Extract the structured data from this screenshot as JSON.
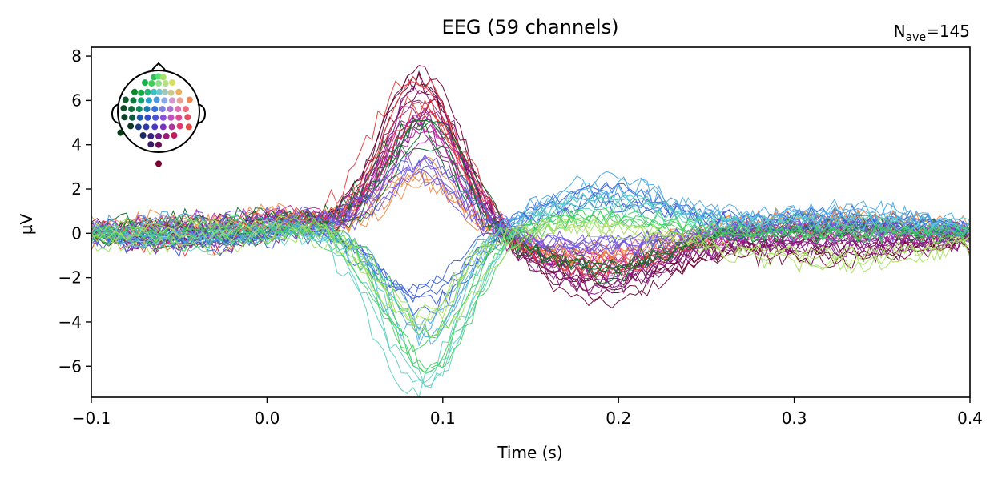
{
  "chart_data": {
    "type": "line",
    "title": "EEG (59 channels)",
    "annotation": {
      "prefix": "N",
      "subscript": "ave",
      "suffix": "=145"
    },
    "xlabel": "Time (s)",
    "ylabel": "µV",
    "xlim": [
      -0.1,
      0.4
    ],
    "ylim": [
      -7.4,
      8.4
    ],
    "xticks": [
      -0.1,
      0.0,
      0.1,
      0.2,
      0.3,
      0.4
    ],
    "xtick_labels": [
      "−0.1",
      "0.0",
      "0.1",
      "0.2",
      "0.3",
      "0.4"
    ],
    "yticks": [
      -6,
      -4,
      -2,
      0,
      2,
      4,
      6,
      8
    ],
    "ytick_labels": [
      "−6",
      "−4",
      "−2",
      "0",
      "2",
      "4",
      "6",
      "8"
    ],
    "grid": false,
    "legend": "sensor-layout inset top-left",
    "channel_count": 59,
    "time_step": 0.00333,
    "colors": {
      "frontal": "#4be04b",
      "frontal_left": "#0a8a2a",
      "temporal_left": "#0d4a26",
      "central": "#3a5fd6",
      "parietal": "#8a2be2",
      "occipital": "#8b0040",
      "right": "#e8503a",
      "right_frontal": "#e8a040"
    },
    "series_groups": [
      {
        "color": "#6b0034",
        "count": 6,
        "peak": 7.2,
        "trough": -2.6,
        "late": -0.8
      },
      {
        "color": "#8a1a8a",
        "count": 6,
        "peak": 6.2,
        "trough": -2.0,
        "late": -0.5
      },
      {
        "color": "#c020a0",
        "count": 5,
        "peak": 4.8,
        "trough": -1.2,
        "late": 0.0
      },
      {
        "color": "#e83a3a",
        "count": 5,
        "peak": 6.6,
        "trough": -1.6,
        "late": 0.4
      },
      {
        "color": "#ef8c4a",
        "count": 4,
        "peak": 3.0,
        "trough": -1.0,
        "late": 0.6
      },
      {
        "color": "#0a6b2a",
        "count": 5,
        "peak": 5.0,
        "trough": -1.8,
        "late": 0.2
      },
      {
        "color": "#6f58e0",
        "count": 6,
        "peak": 3.1,
        "trough": -0.6,
        "late": 0.3
      },
      {
        "color": "#3a5fd6",
        "count": 5,
        "peak": -3.2,
        "trough": 1.8,
        "late": 0.6
      },
      {
        "color": "#4aa8e8",
        "count": 4,
        "peak": -5.0,
        "trough": 2.0,
        "late": 0.8
      },
      {
        "color": "#5ad0c0",
        "count": 4,
        "peak": -6.6,
        "trough": 1.4,
        "late": 0.5
      },
      {
        "color": "#40d060",
        "count": 5,
        "peak": -5.8,
        "trough": 0.8,
        "late": 0.0
      },
      {
        "color": "#a8e060",
        "count": 4,
        "peak": -4.5,
        "trough": 0.5,
        "late": -1.0
      }
    ],
    "sensors": [
      {
        "x": -0.12,
        "y": 0.88,
        "c": "#2bbf55"
      },
      {
        "x": 0.0,
        "y": 0.9,
        "c": "#57e07a"
      },
      {
        "x": 0.12,
        "y": 0.88,
        "c": "#a9e069"
      },
      {
        "x": -0.35,
        "y": 0.74,
        "c": "#18b04a"
      },
      {
        "x": -0.18,
        "y": 0.72,
        "c": "#3ecf5a"
      },
      {
        "x": 0.0,
        "y": 0.72,
        "c": "#8fe08a"
      },
      {
        "x": 0.18,
        "y": 0.72,
        "c": "#b6e07e"
      },
      {
        "x": 0.35,
        "y": 0.74,
        "c": "#d5e060"
      },
      {
        "x": -0.62,
        "y": 0.5,
        "c": "#0a8a2a"
      },
      {
        "x": -0.45,
        "y": 0.48,
        "c": "#16a84a"
      },
      {
        "x": -0.28,
        "y": 0.5,
        "c": "#1fb878"
      },
      {
        "x": -0.12,
        "y": 0.5,
        "c": "#3cc0c0"
      },
      {
        "x": 0.02,
        "y": 0.5,
        "c": "#6fc8d0"
      },
      {
        "x": 0.16,
        "y": 0.5,
        "c": "#9ec8c0"
      },
      {
        "x": 0.32,
        "y": 0.48,
        "c": "#c8c890"
      },
      {
        "x": 0.52,
        "y": 0.5,
        "c": "#e8b060"
      },
      {
        "x": -0.85,
        "y": 0.3,
        "c": "#0d5a2a"
      },
      {
        "x": -0.65,
        "y": 0.28,
        "c": "#0a7a40"
      },
      {
        "x": -0.45,
        "y": 0.28,
        "c": "#14a070"
      },
      {
        "x": -0.25,
        "y": 0.28,
        "c": "#2aa0c8"
      },
      {
        "x": -0.05,
        "y": 0.3,
        "c": "#4a98e0"
      },
      {
        "x": 0.15,
        "y": 0.28,
        "c": "#8aa8e8"
      },
      {
        "x": 0.35,
        "y": 0.28,
        "c": "#d098d0"
      },
      {
        "x": 0.55,
        "y": 0.28,
        "c": "#e8a090"
      },
      {
        "x": 0.8,
        "y": 0.3,
        "c": "#f08850"
      },
      {
        "x": -0.9,
        "y": 0.08,
        "c": "#0d4a26"
      },
      {
        "x": -0.7,
        "y": 0.06,
        "c": "#0f6a3a"
      },
      {
        "x": -0.5,
        "y": 0.06,
        "c": "#128a5a"
      },
      {
        "x": -0.3,
        "y": 0.06,
        "c": "#1a7ab0"
      },
      {
        "x": -0.1,
        "y": 0.06,
        "c": "#3a70d6"
      },
      {
        "x": 0.1,
        "y": 0.06,
        "c": "#7a80e0"
      },
      {
        "x": 0.3,
        "y": 0.06,
        "c": "#b070d0"
      },
      {
        "x": 0.5,
        "y": 0.06,
        "c": "#e070b0"
      },
      {
        "x": 0.7,
        "y": 0.06,
        "c": "#f07080"
      },
      {
        "x": -0.88,
        "y": -0.15,
        "c": "#0c4024"
      },
      {
        "x": -0.68,
        "y": -0.16,
        "c": "#0e5a40"
      },
      {
        "x": -0.48,
        "y": -0.16,
        "c": "#1a5ab0"
      },
      {
        "x": -0.28,
        "y": -0.16,
        "c": "#2e4ad0"
      },
      {
        "x": -0.08,
        "y": -0.16,
        "c": "#4a50d8"
      },
      {
        "x": 0.12,
        "y": -0.16,
        "c": "#8a50d8"
      },
      {
        "x": 0.32,
        "y": -0.16,
        "c": "#c050c0"
      },
      {
        "x": 0.52,
        "y": -0.16,
        "c": "#e04a90"
      },
      {
        "x": 0.75,
        "y": -0.15,
        "c": "#e85060"
      },
      {
        "x": -0.72,
        "y": -0.38,
        "c": "#0d3a2a"
      },
      {
        "x": -0.52,
        "y": -0.4,
        "c": "#1a3a8a"
      },
      {
        "x": -0.32,
        "y": -0.4,
        "c": "#2a3ab0"
      },
      {
        "x": -0.1,
        "y": -0.4,
        "c": "#4a38c0"
      },
      {
        "x": 0.12,
        "y": -0.4,
        "c": "#7a30c0"
      },
      {
        "x": 0.34,
        "y": -0.4,
        "c": "#b030a0"
      },
      {
        "x": 0.55,
        "y": -0.38,
        "c": "#e03a70"
      },
      {
        "x": 0.78,
        "y": -0.4,
        "c": "#e84a40"
      },
      {
        "x": -0.4,
        "y": -0.62,
        "c": "#1a2a6a"
      },
      {
        "x": -0.2,
        "y": -0.64,
        "c": "#3a2080"
      },
      {
        "x": 0.0,
        "y": -0.64,
        "c": "#6a1a8a"
      },
      {
        "x": 0.2,
        "y": -0.64,
        "c": "#9a1a7a"
      },
      {
        "x": 0.4,
        "y": -0.62,
        "c": "#c01a5a"
      },
      {
        "x": -0.2,
        "y": -0.85,
        "c": "#3a1a6a"
      },
      {
        "x": 0.0,
        "y": -0.86,
        "c": "#6a0a5a"
      },
      {
        "x": -0.98,
        "y": -0.55,
        "c": "#083a18"
      },
      {
        "x": 0.0,
        "y": -1.35,
        "c": "#7a0030"
      }
    ]
  }
}
